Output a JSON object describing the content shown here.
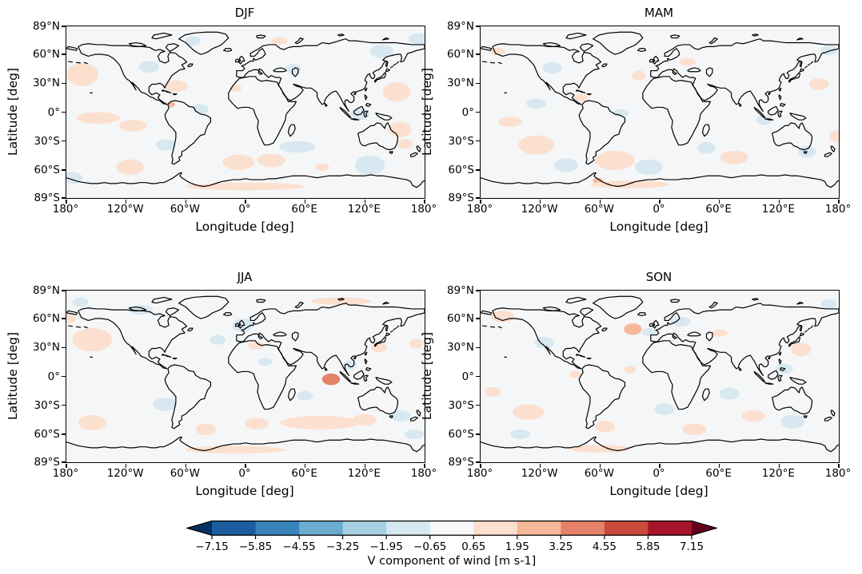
{
  "figure": {
    "background": "#ffffff",
    "ocean_color": "#f5f6f7",
    "coastline_color": "#000000"
  },
  "chart_data": {
    "type": "heatmap",
    "variable": "V component of wind",
    "units": "m s-1",
    "projection": "equirectangular",
    "xlabel": "Longitude [deg]",
    "ylabel": "Latitude [deg]",
    "xlim": [
      -180,
      180
    ],
    "ylim": [
      -89,
      89
    ],
    "grid": false,
    "x_ticks": [
      {
        "value": -180,
        "label": "180°"
      },
      {
        "value": -120,
        "label": "120°W"
      },
      {
        "value": -60,
        "label": "60°W"
      },
      {
        "value": 0,
        "label": "0°"
      },
      {
        "value": 60,
        "label": "60°E"
      },
      {
        "value": 120,
        "label": "120°E"
      },
      {
        "value": 180,
        "label": "180°"
      }
    ],
    "y_ticks": [
      {
        "value": 89,
        "label": "89°N"
      },
      {
        "value": 60,
        "label": "60°N"
      },
      {
        "value": 30,
        "label": "30°N"
      },
      {
        "value": 0,
        "label": "0°"
      },
      {
        "value": -30,
        "label": "30°S"
      },
      {
        "value": -60,
        "label": "60°S"
      },
      {
        "value": -89,
        "label": "89°S"
      }
    ],
    "colorbar": {
      "label": "V component of wind [m s-1]",
      "extend": "both",
      "levels": [
        -7.15,
        -5.85,
        -4.55,
        -3.25,
        -1.95,
        -0.65,
        0.65,
        1.95,
        3.25,
        4.55,
        5.85,
        7.15
      ],
      "tick_labels": [
        "−7.15",
        "−5.85",
        "−4.55",
        "−3.25",
        "−1.95",
        "−0.65",
        "0.65",
        "1.95",
        "3.25",
        "4.55",
        "5.85",
        "7.15"
      ],
      "colors": [
        "#053061",
        "#1c5d9f",
        "#3884bb",
        "#6aacd0",
        "#a7d0e4",
        "#d7e8f1",
        "#f7f7f7",
        "#fce0cf",
        "#f7b799",
        "#e58268",
        "#ca483c",
        "#a51429",
        "#67001f"
      ]
    },
    "anomaly_fields": [
      "lon",
      "lat",
      "rx_deg",
      "ry_deg",
      "value_ms"
    ],
    "panels": [
      {
        "title": "DJF",
        "anomaly_regions": [
          [
            -164,
            39,
            16,
            12,
            1.1
          ],
          [
            -53,
            74,
            8,
            5,
            -1.1
          ],
          [
            -70,
            27,
            12,
            6,
            1.1
          ],
          [
            -97,
            47,
            10,
            6,
            -1.1
          ],
          [
            -45,
            3,
            8,
            5,
            -1.1
          ],
          [
            -148,
            -6,
            22,
            6,
            1.1
          ],
          [
            -113,
            -14,
            14,
            6,
            1.1
          ],
          [
            -116,
            -57,
            14,
            8,
            1.1
          ],
          [
            -174,
            -68,
            10,
            6,
            -1.1
          ],
          [
            -80,
            -34,
            10,
            6,
            -1.1
          ],
          [
            -7,
            -52,
            16,
            8,
            1.1
          ],
          [
            26,
            -50,
            14,
            7,
            1.1
          ],
          [
            52,
            -36,
            18,
            6,
            -1.2
          ],
          [
            77,
            -57,
            7,
            4,
            1.1
          ],
          [
            125,
            -55,
            15,
            10,
            -1.2
          ],
          [
            155,
            -18,
            12,
            8,
            1.1
          ],
          [
            160,
            -33,
            8,
            5,
            1.1
          ],
          [
            137,
            63,
            12,
            7,
            -1.1
          ],
          [
            152,
            21,
            14,
            10,
            1.1
          ],
          [
            174,
            76,
            10,
            6,
            -1.1
          ],
          [
            34,
            74,
            8,
            4,
            1.1
          ],
          [
            48,
            45,
            8,
            5,
            -1.1
          ],
          [
            -10,
            25,
            6,
            4,
            1.1
          ],
          [
            115,
            -2,
            10,
            6,
            -1.1
          ],
          [
            -75,
            8,
            4,
            3,
            2.2
          ],
          [
            0,
            -77,
            60,
            4,
            1.0
          ]
        ]
      },
      {
        "title": "MAM",
        "anomaly_regions": [
          [
            -163,
            63,
            8,
            4,
            1.1
          ],
          [
            -108,
            46,
            10,
            6,
            -1.1
          ],
          [
            -124,
            9,
            10,
            5,
            -1.1
          ],
          [
            -79,
            15,
            7,
            4,
            1.1
          ],
          [
            -39,
            -1,
            8,
            4,
            -1.1
          ],
          [
            -124,
            -34,
            18,
            10,
            1.2
          ],
          [
            -45,
            -50,
            20,
            10,
            1.3
          ],
          [
            -94,
            -55,
            12,
            7,
            -1.1
          ],
          [
            -11,
            -57,
            14,
            8,
            -1.1
          ],
          [
            75,
            -47,
            14,
            7,
            1.1
          ],
          [
            47,
            -37,
            9,
            6,
            -1.1
          ],
          [
            170,
            64,
            8,
            5,
            -1.1
          ],
          [
            160,
            29,
            10,
            6,
            1.1
          ],
          [
            148,
            -41,
            9,
            6,
            -1.1
          ],
          [
            -21,
            38,
            7,
            5,
            1.1
          ],
          [
            -62,
            -71,
            5,
            3,
            2.0
          ],
          [
            28,
            52,
            8,
            4,
            1.1
          ],
          [
            105,
            -8,
            8,
            5,
            -1.1
          ],
          [
            178,
            -25,
            8,
            6,
            1.1
          ],
          [
            -150,
            -10,
            12,
            5,
            1.1
          ],
          [
            -30,
            -75,
            40,
            4,
            1.1
          ]
        ]
      },
      {
        "title": "JJA",
        "anomaly_regions": [
          [
            -154,
            38,
            20,
            12,
            1.3
          ],
          [
            -178,
            60,
            8,
            5,
            1.1
          ],
          [
            -3,
            53,
            10,
            7,
            -1.2
          ],
          [
            -28,
            38,
            8,
            5,
            -1.1
          ],
          [
            20,
            15,
            7,
            4,
            -1.1
          ],
          [
            86,
            -3,
            9,
            6,
            3.8
          ],
          [
            75,
            -48,
            40,
            7,
            1.2
          ],
          [
            120,
            -45,
            12,
            6,
            1.2
          ],
          [
            11,
            -49,
            12,
            6,
            1.2
          ],
          [
            156,
            -41,
            10,
            6,
            -1.1
          ],
          [
            -81,
            -29,
            12,
            7,
            -1.1
          ],
          [
            -154,
            -48,
            14,
            8,
            1.1
          ],
          [
            -105,
            69,
            12,
            5,
            -1.1
          ],
          [
            96,
            78,
            30,
            4,
            1.1
          ],
          [
            -166,
            77,
            8,
            5,
            -1.1
          ],
          [
            134,
            30,
            8,
            5,
            1.1
          ],
          [
            172,
            34,
            7,
            5,
            1.1
          ],
          [
            105,
            12,
            7,
            5,
            -1.1
          ],
          [
            11,
            32,
            8,
            4,
            1.1
          ],
          [
            60,
            -20,
            8,
            5,
            -1.1
          ],
          [
            -40,
            -55,
            10,
            6,
            1.1
          ],
          [
            170,
            -60,
            10,
            5,
            -1.1
          ],
          [
            -10,
            -76,
            50,
            4,
            1.1
          ]
        ]
      },
      {
        "title": "SON",
        "anomaly_regions": [
          [
            -158,
            62,
            12,
            6,
            1.2
          ],
          [
            -27,
            49,
            9,
            6,
            2.2
          ],
          [
            -116,
            35,
            10,
            6,
            -1.1
          ],
          [
            21,
            57,
            10,
            5,
            -1.2
          ],
          [
            -11,
            46,
            7,
            4,
            -1.1
          ],
          [
            -30,
            7,
            6,
            4,
            1.1
          ],
          [
            5,
            -34,
            10,
            6,
            -1.1
          ],
          [
            -132,
            -37,
            16,
            8,
            1.1
          ],
          [
            -168,
            -16,
            8,
            5,
            1.1
          ],
          [
            -85,
            2,
            6,
            4,
            1.1
          ],
          [
            70,
            -18,
            10,
            6,
            -1.1
          ],
          [
            94,
            -41,
            12,
            6,
            1.1
          ],
          [
            134,
            -47,
            12,
            7,
            -1.1
          ],
          [
            142,
            28,
            10,
            7,
            1.1
          ],
          [
            125,
            8,
            9,
            5,
            -1.1
          ],
          [
            -55,
            -52,
            10,
            6,
            1.1
          ],
          [
            170,
            75,
            8,
            5,
            -1.1
          ],
          [
            60,
            45,
            8,
            4,
            1.1
          ],
          [
            -140,
            -60,
            10,
            5,
            -1.1
          ],
          [
            35,
            -55,
            12,
            6,
            1.1
          ],
          [
            -60,
            -75,
            30,
            4,
            1.2
          ]
        ]
      }
    ]
  }
}
